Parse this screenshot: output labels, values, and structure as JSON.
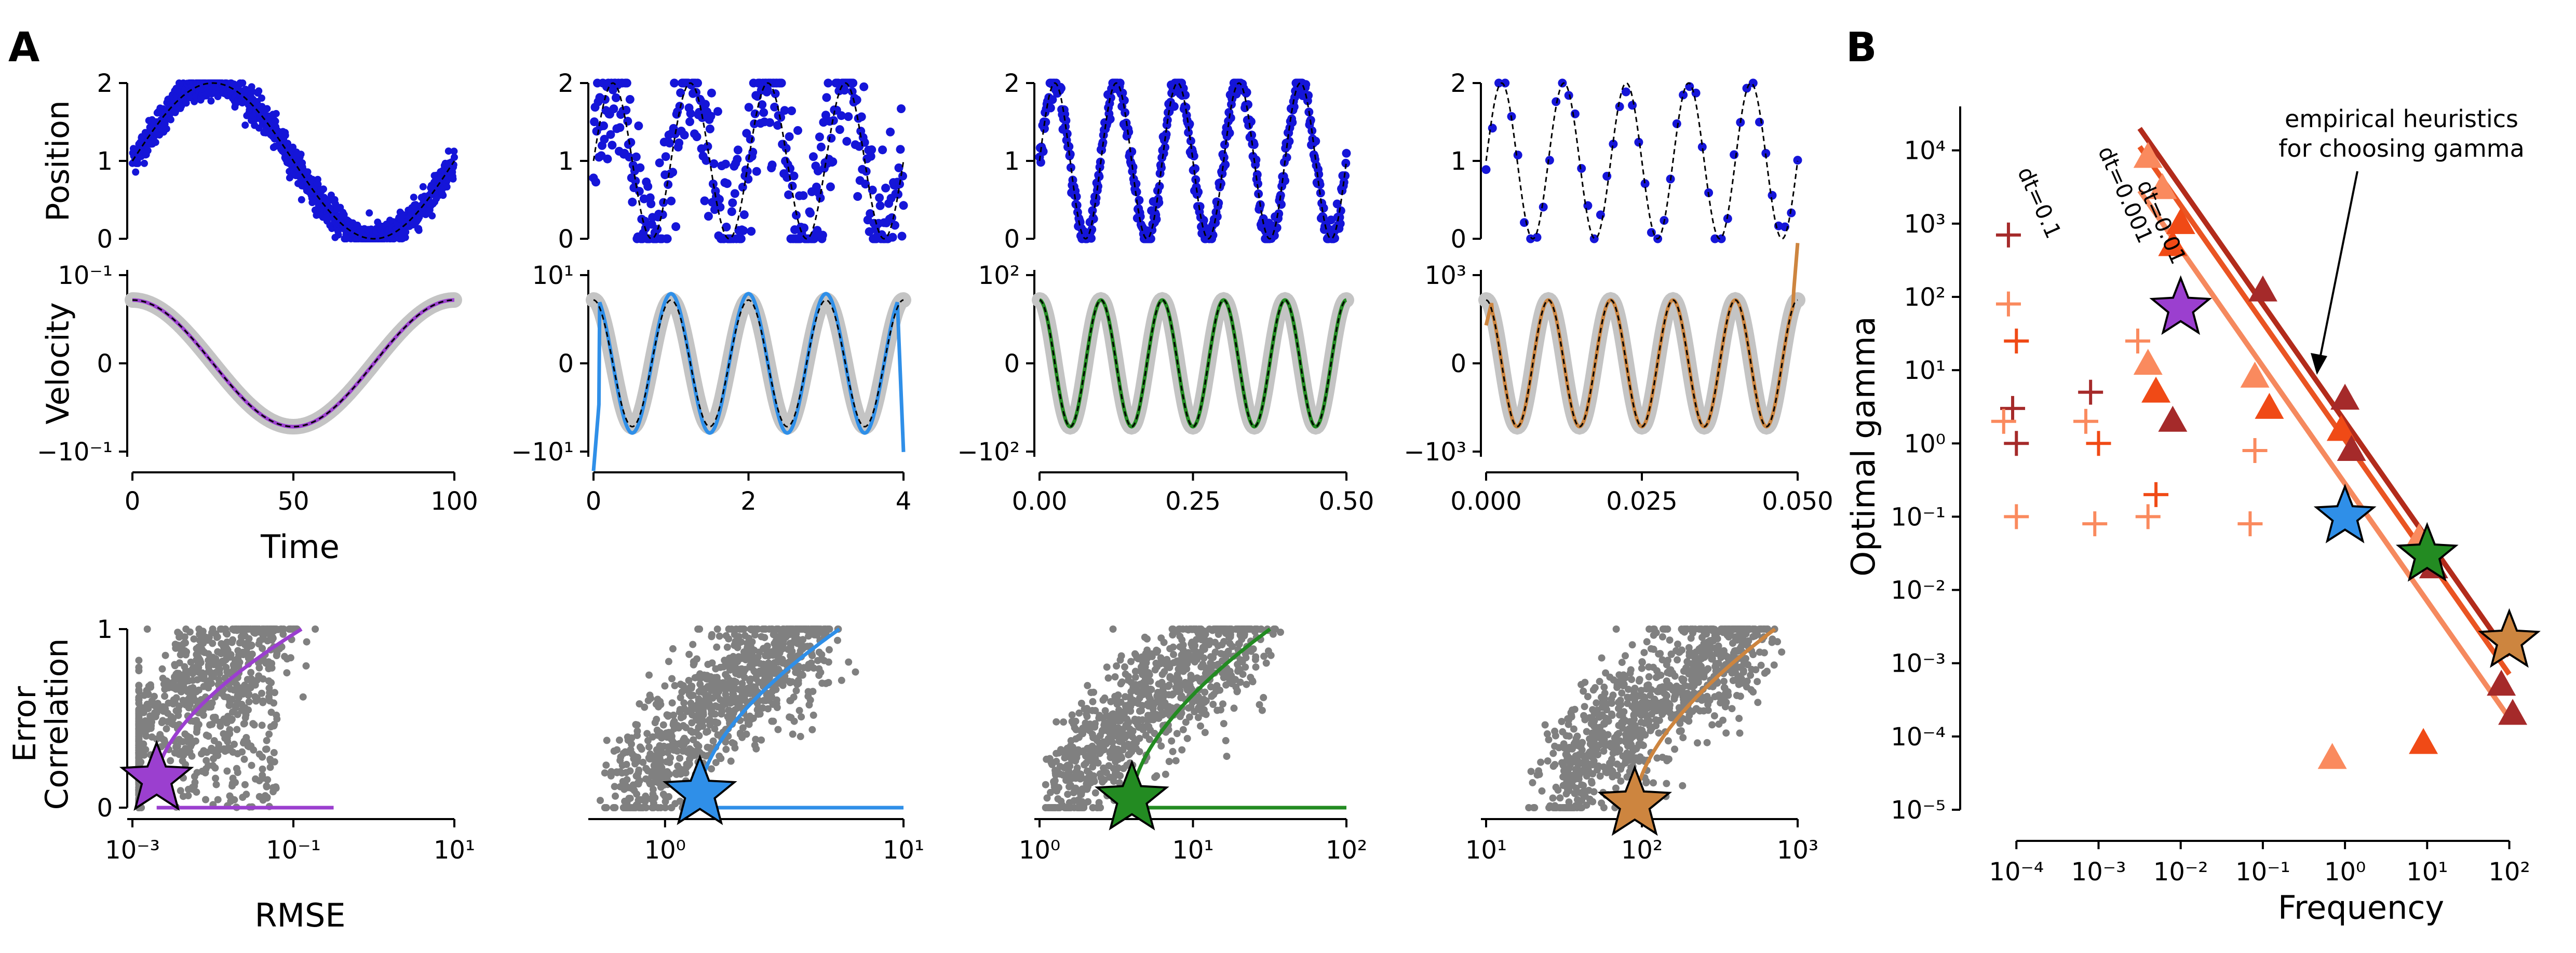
{
  "figure": {
    "panel_a_label": "A",
    "panel_b_label": "B"
  },
  "colors": {
    "sim_purple": "#9b3fcf",
    "sim_blue": "#2f8fe8",
    "sim_green": "#238b22",
    "sim_orange": "#cd853f",
    "data_blue": "#1515d8",
    "truth_gray": "#c4c4c4",
    "scatter_gray": "#808080",
    "line_dt0001": "#b22b1b",
    "line_dt001": "#ea5422",
    "line_dt01": "#f5895e",
    "marker_dark": "#a52a2a",
    "marker_mid": "#f04a16",
    "marker_light": "#fa8a5e"
  },
  "labels": {
    "position_ylabel": "Position",
    "velocity_ylabel": "Velocity",
    "time_xlabel": "Time",
    "error_ylabel_line1": "Error",
    "error_ylabel_line2": "Correlation",
    "rmse_xlabel": "RMSE",
    "gamma_ylabel": "Optimal gamma",
    "freq_xlabel": "Frequency",
    "annotation_line1": "empirical heuristics",
    "annotation_line2": "for choosing gamma",
    "dt_0001": "dt=0.001",
    "dt_001": "dt=0.01",
    "dt_01": "dt=0.1"
  },
  "chart_data": [
    {
      "id": "position-col1",
      "type": "scatter",
      "xlim": [
        0,
        100
      ],
      "ylim": [
        0,
        2
      ],
      "yticks": [
        "0",
        "1",
        "2"
      ],
      "truth": "1 + sin(2*pi*t/100)",
      "noise_sd": 0.1,
      "n_points": 1000,
      "series": [
        {
          "values": "noisy position samples"
        }
      ]
    },
    {
      "id": "position-col2",
      "type": "scatter",
      "xlim": [
        0,
        4
      ],
      "ylim": [
        0,
        2
      ],
      "yticks": [
        "0",
        "1",
        "2"
      ],
      "truth": "1 + sin(2*pi*t)",
      "noise_sd": 0.5,
      "n_points": 400
    },
    {
      "id": "position-col3",
      "type": "scatter",
      "xlim": [
        0,
        0.5
      ],
      "ylim": [
        0,
        2
      ],
      "yticks": [
        "0",
        "1",
        "2"
      ],
      "truth": "1 + sin(2*pi*10*t)",
      "noise_sd": 0.1,
      "n_points": 500
    },
    {
      "id": "position-col4",
      "type": "scatter",
      "xlim": [
        0,
        0.05
      ],
      "ylim": [
        0,
        2
      ],
      "yticks": [
        "0",
        "1",
        "2"
      ],
      "truth": "1 + sin(2*pi*100*t)",
      "noise_sd": 0.1,
      "n_points": 50
    },
    {
      "id": "velocity-col1",
      "type": "line",
      "xlim": [
        0,
        100
      ],
      "yticks": [
        "10⁻¹",
        "0",
        "−10⁻¹"
      ],
      "xticks": [
        "0",
        "50",
        "100"
      ],
      "estimate_series": "purple"
    },
    {
      "id": "velocity-col2",
      "type": "line",
      "xlim": [
        0,
        4
      ],
      "yticks": [
        "10¹",
        "0",
        "−10¹"
      ],
      "xticks": [
        "0",
        "2",
        "4"
      ],
      "estimate_series": "blue"
    },
    {
      "id": "velocity-col3",
      "type": "line",
      "xlim": [
        0,
        0.5
      ],
      "yticks": [
        "10²",
        "0",
        "−10²"
      ],
      "xticks": [
        "0.00",
        "0.25",
        "0.50"
      ],
      "estimate_series": "green"
    },
    {
      "id": "velocity-col4",
      "type": "line",
      "xlim": [
        0,
        0.05
      ],
      "yticks": [
        "10³",
        "0",
        "−10³"
      ],
      "xticks": [
        "0.000",
        "0.025",
        "0.050"
      ],
      "estimate_series": "orange"
    },
    {
      "id": "error-col1",
      "type": "scatter",
      "xscale": "log",
      "xlim_exp": [
        -3,
        1
      ],
      "xticks": [
        "10⁻³",
        "10⁻¹",
        "10¹"
      ],
      "ylim": [
        0,
        1
      ],
      "yticks": [
        "0",
        "1"
      ],
      "star": {
        "rmse": 0.002,
        "error_correlation": 0.16,
        "color": "purple"
      }
    },
    {
      "id": "error-col2",
      "type": "scatter",
      "xscale": "log",
      "xlim_exp": [
        -0.3,
        1
      ],
      "xticks": [
        "10⁰",
        "10¹"
      ],
      "ylim": [
        0,
        1
      ],
      "star": {
        "rmse": 1.4,
        "error_correlation": 0.08,
        "color": "blue"
      }
    },
    {
      "id": "error-col3",
      "type": "scatter",
      "xscale": "log",
      "xlim_exp": [
        0,
        2
      ],
      "xticks": [
        "10⁰",
        "10¹",
        "10²"
      ],
      "ylim": [
        0,
        1
      ],
      "star": {
        "rmse": 4,
        "error_correlation": 0.05,
        "color": "green"
      }
    },
    {
      "id": "error-col4",
      "type": "scatter",
      "xscale": "log",
      "xlim_exp": [
        1,
        3
      ],
      "xticks": [
        "10¹",
        "10²",
        "10³"
      ],
      "ylim": [
        0,
        1
      ],
      "star": {
        "rmse": 90,
        "error_correlation": 0.02,
        "color": "orange"
      }
    },
    {
      "id": "gamma-vs-frequency",
      "type": "scatter",
      "xscale": "log",
      "yscale": "log",
      "xlim_exp": [
        -4.4,
        2.3
      ],
      "ylim_exp": [
        -5,
        4.6
      ],
      "xticks": [
        "10⁻⁴",
        "10⁻³",
        "10⁻²",
        "10⁻¹",
        "10⁰",
        "10¹",
        "10²"
      ],
      "yticks": [
        "10⁴",
        "10³",
        "10²",
        "10¹",
        "10⁰",
        "10⁻¹",
        "10⁻²",
        "10⁻³",
        "10⁻⁴",
        "10⁻⁵"
      ],
      "heuristic_lines": [
        {
          "name": "dt=0.001",
          "log10_gamma_at_log10_freq_0": 0.3,
          "slope": -1.6
        },
        {
          "name": "dt=0.01",
          "log10_gamma_at_log10_freq_0": 0.05,
          "slope": -1.6
        },
        {
          "name": "dt=0.1",
          "log10_gamma_at_log10_freq_0": -0.55,
          "slope": -1.6
        }
      ],
      "stars": [
        {
          "freq": 0.01,
          "gamma": 70,
          "color": "purple"
        },
        {
          "freq": 1,
          "gamma": 0.1,
          "color": "blue"
        },
        {
          "freq": 10,
          "gamma": 0.03,
          "color": "green"
        },
        {
          "freq": 100,
          "gamma": 0.002,
          "color": "orange"
        }
      ],
      "cross_points": [
        {
          "freq": 8e-05,
          "gamma": 700,
          "shade": "dark"
        },
        {
          "freq": 8e-05,
          "gamma": 80,
          "shade": "light"
        },
        {
          "freq": 0.0001,
          "gamma": 25,
          "shade": "mid"
        },
        {
          "freq": 9e-05,
          "gamma": 3,
          "shade": "dark"
        },
        {
          "freq": 7e-05,
          "gamma": 2,
          "shade": "light"
        },
        {
          "freq": 0.0001,
          "gamma": 1,
          "shade": "dark"
        },
        {
          "freq": 0.0001,
          "gamma": 0.1,
          "shade": "light"
        },
        {
          "freq": 0.0008,
          "gamma": 5,
          "shade": "dark"
        },
        {
          "freq": 0.0007,
          "gamma": 2,
          "shade": "light"
        },
        {
          "freq": 0.001,
          "gamma": 1,
          "shade": "mid"
        },
        {
          "freq": 0.0009,
          "gamma": 0.08,
          "shade": "light"
        },
        {
          "freq": 0.003,
          "gamma": 25,
          "shade": "light"
        },
        {
          "freq": 0.004,
          "gamma": 0.1,
          "shade": "light"
        },
        {
          "freq": 0.005,
          "gamma": 0.2,
          "shade": "mid"
        },
        {
          "freq": 0.08,
          "gamma": 0.8,
          "shade": "light"
        },
        {
          "freq": 0.07,
          "gamma": 0.08,
          "shade": "light"
        }
      ],
      "triangle_points": [
        {
          "freq": 0.004,
          "gamma": 8000,
          "shade": "light"
        },
        {
          "freq": 0.006,
          "gamma": 3000,
          "shade": "light"
        },
        {
          "freq": 0.01,
          "gamma": 1000,
          "shade": "mid"
        },
        {
          "freq": 0.008,
          "gamma": 500,
          "shade": "mid"
        },
        {
          "freq": 0.004,
          "gamma": 12,
          "shade": "light"
        },
        {
          "freq": 0.005,
          "gamma": 5,
          "shade": "mid"
        },
        {
          "freq": 0.008,
          "gamma": 2,
          "shade": "dark"
        },
        {
          "freq": 0.1,
          "gamma": 120,
          "shade": "dark"
        },
        {
          "freq": 0.08,
          "gamma": 8,
          "shade": "light"
        },
        {
          "freq": 0.12,
          "gamma": 3,
          "shade": "mid"
        },
        {
          "freq": 1,
          "gamma": 4,
          "shade": "dark"
        },
        {
          "freq": 0.9,
          "gamma": 1.5,
          "shade": "mid"
        },
        {
          "freq": 1.2,
          "gamma": 0.8,
          "shade": "dark"
        },
        {
          "freq": 0.7,
          "gamma": 5e-05,
          "shade": "light"
        },
        {
          "freq": 8,
          "gamma": 0.05,
          "shade": "light"
        },
        {
          "freq": 12,
          "gamma": 0.02,
          "shade": "dark"
        },
        {
          "freq": 9,
          "gamma": 8e-05,
          "shade": "mid"
        },
        {
          "freq": 80,
          "gamma": 0.0005,
          "shade": "dark"
        },
        {
          "freq": 110,
          "gamma": 0.0002,
          "shade": "dark"
        }
      ]
    }
  ]
}
